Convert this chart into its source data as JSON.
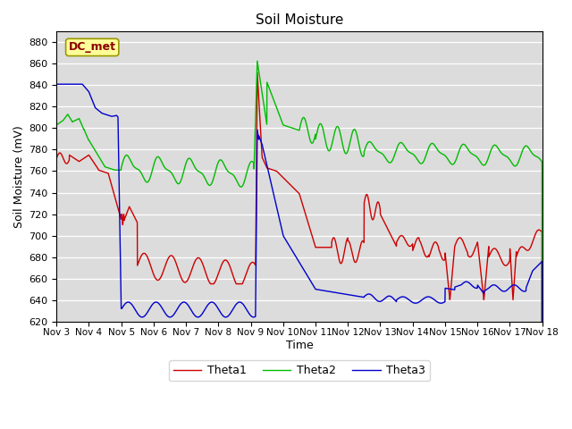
{
  "title": "Soil Moisture",
  "xlabel": "Time",
  "ylabel": "Soil Moisture (mV)",
  "ylim": [
    620,
    890
  ],
  "yticks": [
    620,
    640,
    660,
    680,
    700,
    720,
    740,
    760,
    780,
    800,
    820,
    840,
    860,
    880
  ],
  "annotation_text": "DC_met",
  "annotation_color": "#8B0000",
  "annotation_bg": "#FFFF99",
  "bg_color": "#DCDCDC",
  "line_colors": {
    "Theta1": "#CC0000",
    "Theta2": "#00BB00",
    "Theta3": "#0000CC"
  },
  "legend_entries": [
    "Theta1",
    "Theta2",
    "Theta3"
  ],
  "xtick_days": [
    3,
    4,
    5,
    6,
    7,
    8,
    9,
    10,
    11,
    12,
    13,
    14,
    15,
    16,
    17,
    18
  ]
}
